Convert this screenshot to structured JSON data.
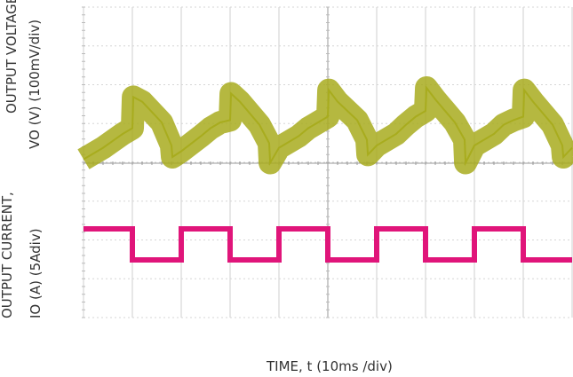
{
  "chart_data": [
    {
      "type": "line",
      "title": "",
      "ylabel_line1": "OUTPUT VOLTAGE",
      "ylabel_line2": "VO (V) (100mV/div)",
      "color": "#a8ac1e",
      "series": [
        {
          "x": [
            0,
            2,
            4,
            5,
            5.1,
            6,
            8,
            9,
            9.1,
            10,
            12,
            13,
            14,
            15,
            15.1,
            16,
            18,
            19,
            19.1,
            20,
            22,
            23,
            24,
            25,
            25.1,
            26,
            28,
            29,
            29.1,
            30,
            32,
            33,
            34,
            35,
            35.1,
            36,
            38,
            39,
            39.1,
            40,
            42,
            43,
            44,
            45,
            45.1,
            46,
            48,
            49,
            49.1,
            50
          ],
          "values": [
            0.08,
            0.18,
            0.3,
            0.35,
            0.62,
            0.58,
            0.4,
            0.2,
            0.1,
            0.15,
            0.28,
            0.35,
            0.4,
            0.42,
            0.65,
            0.58,
            0.38,
            0.22,
            0.05,
            0.18,
            0.28,
            0.35,
            0.4,
            0.45,
            0.68,
            0.58,
            0.42,
            0.25,
            0.12,
            0.2,
            0.3,
            0.38,
            0.45,
            0.5,
            0.7,
            0.6,
            0.4,
            0.25,
            0.05,
            0.2,
            0.3,
            0.38,
            0.42,
            0.45,
            0.68,
            0.58,
            0.38,
            0.2,
            0.1,
            0.18
          ]
        }
      ]
    },
    {
      "type": "line",
      "ylabel_line1": "OUTPUT CURRENT,",
      "ylabel_line2": "IO (A)  (5Adiv)",
      "xlabel": "TIME, t (10ms /div)",
      "color": "#e0157a",
      "series": [
        {
          "x": [
            0,
            5,
            5,
            10,
            10,
            15,
            15,
            20,
            20,
            25,
            25,
            30,
            30,
            35,
            35,
            40,
            40,
            45,
            45,
            50
          ],
          "values": [
            1,
            1,
            0,
            0,
            1,
            1,
            0,
            0,
            1,
            1,
            0,
            0,
            1,
            1,
            0,
            0,
            1,
            1,
            0,
            0
          ]
        }
      ]
    }
  ]
}
